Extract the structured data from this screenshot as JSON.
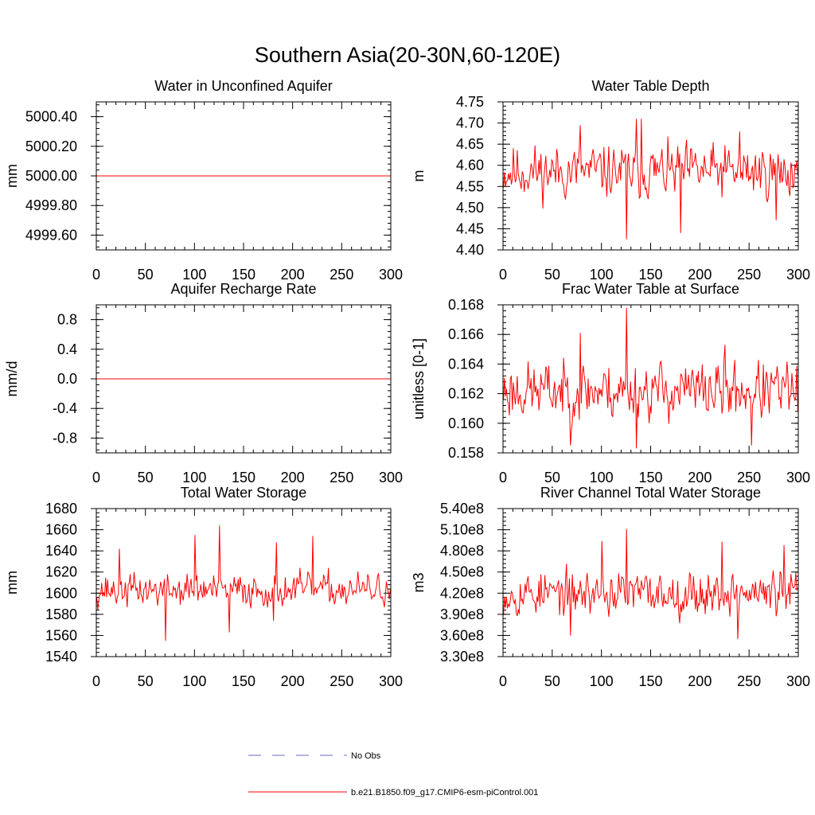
{
  "figure": {
    "title": "Southern Asia(20-30N,60-120E)"
  },
  "legend": {
    "entries": [
      {
        "label": "No Obs",
        "style": "dashed",
        "color": "#6a6ac8"
      },
      {
        "label": "b.e21.B1850.f09_g17.CMIP6-esm-piControl.001",
        "style": "solid",
        "color": "#ff0000"
      }
    ]
  },
  "chart_data": [
    {
      "type": "line",
      "title": "Water in Unconfined Aquifer",
      "ylabel": "mm",
      "xlim": [
        0,
        300
      ],
      "ylim": [
        4999.5,
        5000.5
      ],
      "xticks": [
        0,
        50,
        100,
        150,
        200,
        250,
        300
      ],
      "yticks": [
        4999.6,
        4999.8,
        5000.0,
        5000.2,
        5000.4
      ],
      "yticklabels": [
        "4999.60",
        "4999.80",
        "5000.00",
        "5000.20",
        "5000.40"
      ],
      "series": [
        {
          "name": "b.e21.B1850.f09_g17.CMIP6-esm-piControl.001",
          "color": "#ff0000",
          "gen": "const",
          "value": 5000.0
        }
      ]
    },
    {
      "type": "line",
      "title": "Water Table Depth",
      "ylabel": "m",
      "xlim": [
        0,
        300
      ],
      "ylim": [
        4.4,
        4.75
      ],
      "xticks": [
        0,
        50,
        100,
        150,
        200,
        250,
        300
      ],
      "yticks": [
        4.4,
        4.45,
        4.5,
        4.55,
        4.6,
        4.65,
        4.7,
        4.75
      ],
      "yticklabels": [
        "4.40",
        "4.45",
        "4.50",
        "4.55",
        "4.60",
        "4.65",
        "4.70",
        "4.75"
      ],
      "series": [
        {
          "name": "b.e21.B1850.f09_g17.CMIP6-esm-piControl.001",
          "color": "#ff0000",
          "gen": "noise",
          "mean": 4.585,
          "amp": 0.052,
          "seed": 11,
          "spikes": [
            [
              125,
              4.425
            ],
            [
              135,
              4.71
            ],
            [
              140,
              4.71
            ],
            [
              180,
              4.44
            ],
            [
              78,
              4.695
            ],
            [
              240,
              4.68
            ],
            [
              277,
              4.47
            ]
          ]
        }
      ]
    },
    {
      "type": "line",
      "title": "Aquifer Recharge Rate",
      "ylabel": "mm/d",
      "xlim": [
        0,
        300
      ],
      "ylim": [
        -1,
        1
      ],
      "xticks": [
        0,
        50,
        100,
        150,
        200,
        250,
        300
      ],
      "yticks": [
        -0.8,
        -0.4,
        0.0,
        0.4,
        0.8
      ],
      "yticklabels": [
        "-0.8",
        "-0.4",
        "0.0",
        "0.4",
        "0.8"
      ],
      "series": [
        {
          "name": "b.e21.B1850.f09_g17.CMIP6-esm-piControl.001",
          "color": "#ff0000",
          "gen": "const",
          "value": 0.0
        }
      ]
    },
    {
      "type": "line",
      "title": "Frac Water Table at Surface",
      "ylabel": "unitless [0-1]",
      "xlim": [
        0,
        300
      ],
      "ylim": [
        0.158,
        0.168
      ],
      "xticks": [
        0,
        50,
        100,
        150,
        200,
        250,
        300
      ],
      "yticks": [
        0.158,
        0.16,
        0.162,
        0.164,
        0.166,
        0.168
      ],
      "yticklabels": [
        "0.158",
        "0.160",
        "0.162",
        "0.164",
        "0.166",
        "0.168"
      ],
      "series": [
        {
          "name": "b.e21.B1850.f09_g17.CMIP6-esm-piControl.001",
          "color": "#ff0000",
          "gen": "noise",
          "mean": 0.1622,
          "amp": 0.0016,
          "seed": 23,
          "spikes": [
            [
              125,
              0.1678
            ],
            [
              135,
              0.1583
            ],
            [
              68,
              0.1585
            ],
            [
              78,
              0.1661
            ],
            [
              252,
              0.1585
            ],
            [
              225,
              0.1653
            ]
          ]
        }
      ]
    },
    {
      "type": "line",
      "title": "Total Water Storage",
      "ylabel": "mm",
      "xlim": [
        0,
        300
      ],
      "ylim": [
        1540,
        1680
      ],
      "xticks": [
        0,
        50,
        100,
        150,
        200,
        250,
        300
      ],
      "yticks": [
        1540,
        1560,
        1580,
        1600,
        1620,
        1640,
        1660,
        1680
      ],
      "yticklabels": [
        "1540",
        "1560",
        "1580",
        "1600",
        "1620",
        "1640",
        "1660",
        "1680"
      ],
      "series": [
        {
          "name": "b.e21.B1850.f09_g17.CMIP6-esm-piControl.001",
          "color": "#ff0000",
          "gen": "noise",
          "mean": 1603,
          "amp": 13,
          "seed": 37,
          "spikes": [
            [
              70,
              1555
            ],
            [
              100,
              1655
            ],
            [
              125,
              1664
            ],
            [
              135,
              1563
            ],
            [
              180,
              1574
            ],
            [
              220,
              1654
            ],
            [
              23,
              1642
            ],
            [
              183,
              1648
            ]
          ]
        }
      ]
    },
    {
      "type": "line",
      "title": "River Channel Total Water Storage",
      "ylabel": "m3",
      "xlim": [
        0,
        300
      ],
      "ylim": [
        330000000,
        540000000
      ],
      "xticks": [
        0,
        50,
        100,
        150,
        200,
        250,
        300
      ],
      "yticks": [
        330000000,
        360000000,
        390000000,
        420000000,
        450000000,
        480000000,
        510000000,
        540000000
      ],
      "yticklabels": [
        "3.30e8",
        "3.60e8",
        "3.90e8",
        "4.20e8",
        "4.50e8",
        "4.80e8",
        "5.10e8",
        "5.40e8"
      ],
      "series": [
        {
          "name": "b.e21.B1850.f09_g17.CMIP6-esm-piControl.001",
          "color": "#ff0000",
          "gen": "noise",
          "mean": 420000000,
          "amp": 26000000,
          "seed": 53,
          "spikes": [
            [
              125,
              511000000
            ],
            [
              238,
              355000000
            ],
            [
              100,
              494000000
            ],
            [
              222,
              493000000
            ],
            [
              68,
              360000000
            ],
            [
              285,
              488000000
            ]
          ]
        }
      ]
    }
  ]
}
